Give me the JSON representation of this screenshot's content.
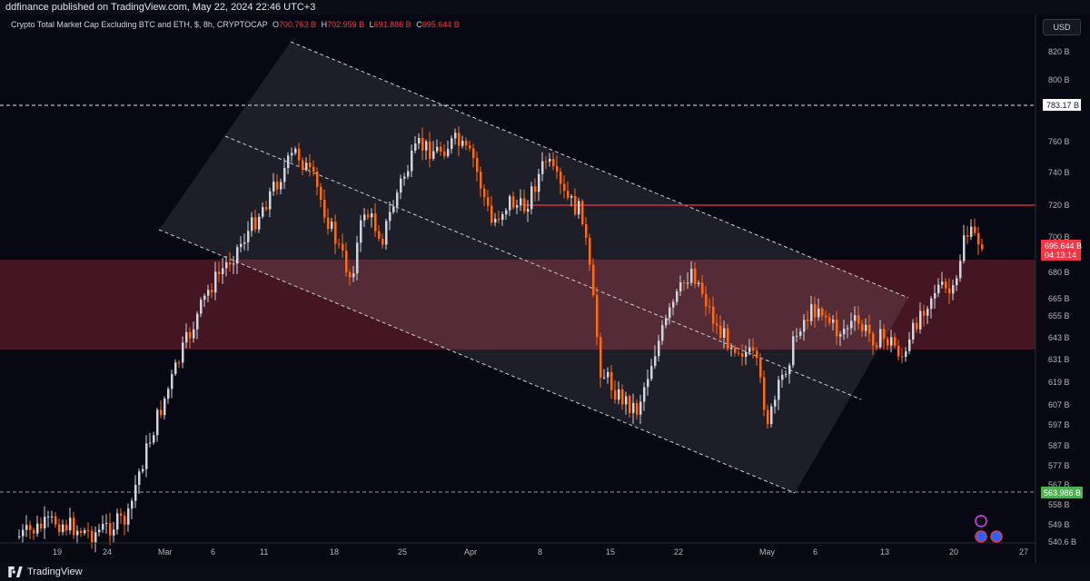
{
  "header": {
    "publish_text": "ddfinance published on TradingView.com, May 22, 2024 22:46 UTC+3"
  },
  "legend": {
    "symbol": "Crypto Total Market Cap Excluding BTC and ETH, $, 8h, CRYPTOCAP",
    "open_label": "O",
    "open": "700.763 B",
    "high_label": "H",
    "high": "702.959 B",
    "low_label": "L",
    "low": "691.886 B",
    "close_label": "C",
    "close": "695.644 B"
  },
  "price_axis": {
    "currency": "USD",
    "ticks": [
      "820 B",
      "800 B",
      "783.17 B",
      "760 B",
      "740 B",
      "720 B",
      "700 B",
      "680 B",
      "665 B",
      "655 B",
      "643 B",
      "631 B",
      "619 B",
      "607 B",
      "597 B",
      "587 B",
      "577 B",
      "567 B",
      "558 B",
      "549 B",
      "540.6 B"
    ],
    "level_high": "783.17 B",
    "level_low": "563.986 B",
    "current_price": "695.644 B",
    "countdown": "04:13:14"
  },
  "time_axis": {
    "labels": [
      "19",
      "24",
      "Mar",
      "6",
      "11",
      "18",
      "25",
      "Apr",
      "8",
      "15",
      "22",
      "May",
      "6",
      "13",
      "20",
      "27"
    ]
  },
  "colors": {
    "up": "#d1d4dc",
    "down": "#ff6a13",
    "zone": "#5a1b2a",
    "resistance": "#f23645",
    "current": "#f23645",
    "support_label": "#4caf50"
  },
  "footer": {
    "brand": "TradingView"
  }
}
